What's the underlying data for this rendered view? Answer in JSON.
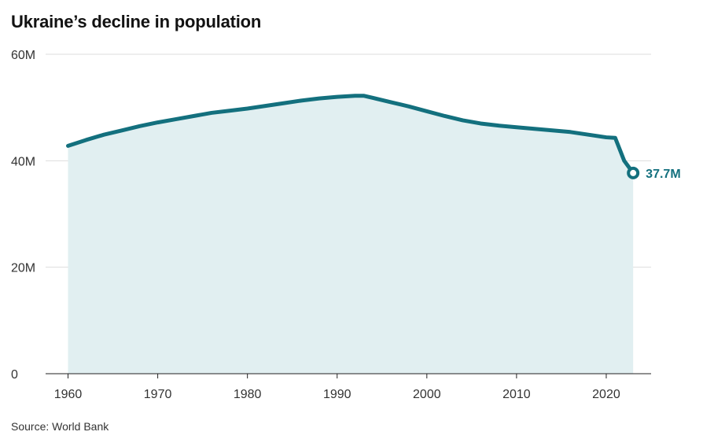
{
  "title": "Ukraine’s decline in population",
  "source": "Source: World Bank",
  "colors": {
    "line": "#13707e",
    "area": "#e1eff1",
    "grid": "#dddddd",
    "axis": "#222222"
  },
  "chart_data": {
    "type": "area",
    "title": "Ukraine’s decline in population",
    "xlabel": "",
    "ylabel": "",
    "xlim": [
      1957.5,
      2025
    ],
    "ylim": [
      0,
      60000000
    ],
    "x_ticks": [
      1960,
      1970,
      1980,
      1990,
      2000,
      2010,
      2020
    ],
    "x_tick_labels": [
      "1960",
      "1970",
      "1980",
      "1990",
      "2000",
      "2010",
      "2020"
    ],
    "y_ticks": [
      0,
      20000000,
      40000000,
      60000000
    ],
    "y_tick_labels": [
      "0",
      "20M",
      "40M",
      "60M"
    ],
    "grid": true,
    "series": [
      {
        "name": "",
        "x": [
          1960,
          1962,
          1964,
          1966,
          1968,
          1970,
          1972,
          1974,
          1976,
          1978,
          1980,
          1982,
          1984,
          1986,
          1988,
          1990,
          1992,
          1993,
          1994,
          1996,
          1998,
          2000,
          2002,
          2004,
          2006,
          2008,
          2010,
          2012,
          2014,
          2016,
          2018,
          2020,
          2021,
          2022,
          2023
        ],
        "values": [
          42.8,
          43.9,
          44.9,
          45.7,
          46.5,
          47.2,
          47.8,
          48.4,
          49.0,
          49.4,
          49.8,
          50.3,
          50.8,
          51.3,
          51.7,
          52.0,
          52.2,
          52.2,
          51.8,
          51.0,
          50.2,
          49.3,
          48.4,
          47.6,
          47.0,
          46.6,
          46.3,
          46.0,
          45.7,
          45.4,
          44.9,
          44.4,
          44.3,
          40.0,
          37.7
        ],
        "unit": "millions"
      }
    ],
    "annotations": [
      {
        "x": 2023,
        "y": 37.7,
        "text": "37.7M"
      }
    ]
  }
}
